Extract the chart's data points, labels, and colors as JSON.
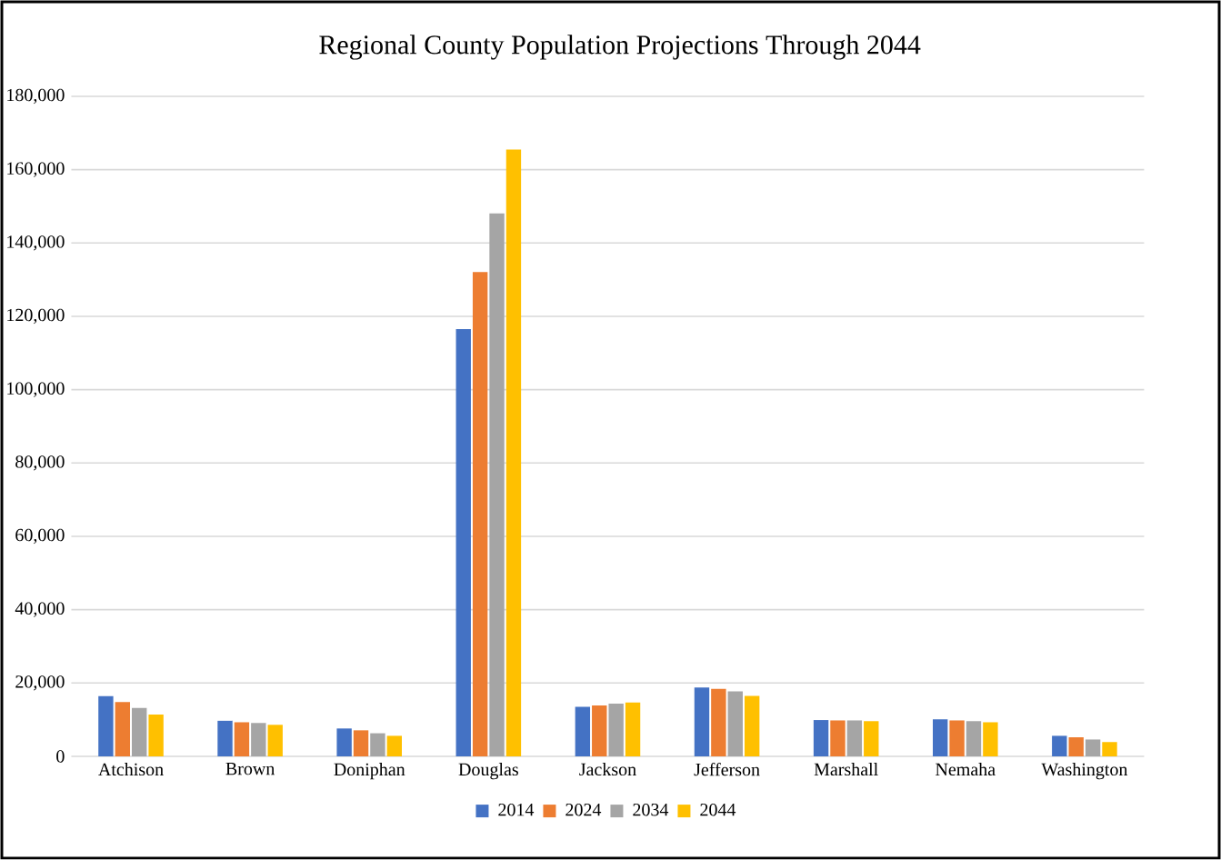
{
  "chart_data": {
    "type": "bar",
    "title": "Regional County Population Projections Through 2044",
    "categories": [
      "Atchison",
      "Brown",
      "Doniphan",
      "Douglas",
      "Jackson",
      "Jefferson",
      "Marshall",
      "Nemaha",
      "Washington"
    ],
    "series": [
      {
        "name": "2014",
        "color": "#4472c4",
        "values": [
          16400,
          9700,
          7600,
          116500,
          13500,
          18800,
          9900,
          10100,
          5600
        ]
      },
      {
        "name": "2024",
        "color": "#ed7d31",
        "values": [
          14800,
          9300,
          7100,
          132100,
          13900,
          18400,
          9800,
          9800,
          5200
        ]
      },
      {
        "name": "2034",
        "color": "#a5a5a5",
        "values": [
          13200,
          9100,
          6300,
          148100,
          14400,
          17700,
          9800,
          9600,
          4600
        ]
      },
      {
        "name": "2044",
        "color": "#ffc000",
        "values": [
          11400,
          8600,
          5600,
          165500,
          14700,
          16500,
          9600,
          9300,
          3900
        ]
      }
    ],
    "ylim": [
      0,
      180000
    ],
    "yticks": [
      0,
      {
        "value": 20000,
        "label": "20,000"
      },
      {
        "value": 40000,
        "label": "40,000"
      },
      {
        "value": 60000,
        "label": "60,000"
      },
      {
        "value": 80000,
        "label": "80,000"
      },
      {
        "value": 100000,
        "label": "100,000"
      },
      {
        "value": 120000,
        "label": "120,000"
      },
      {
        "value": 140000,
        "label": "140,000"
      },
      {
        "value": 160000,
        "label": "160,000"
      },
      {
        "value": 180000,
        "label": "180,000"
      }
    ],
    "grid": "y",
    "legend": "bottom"
  }
}
